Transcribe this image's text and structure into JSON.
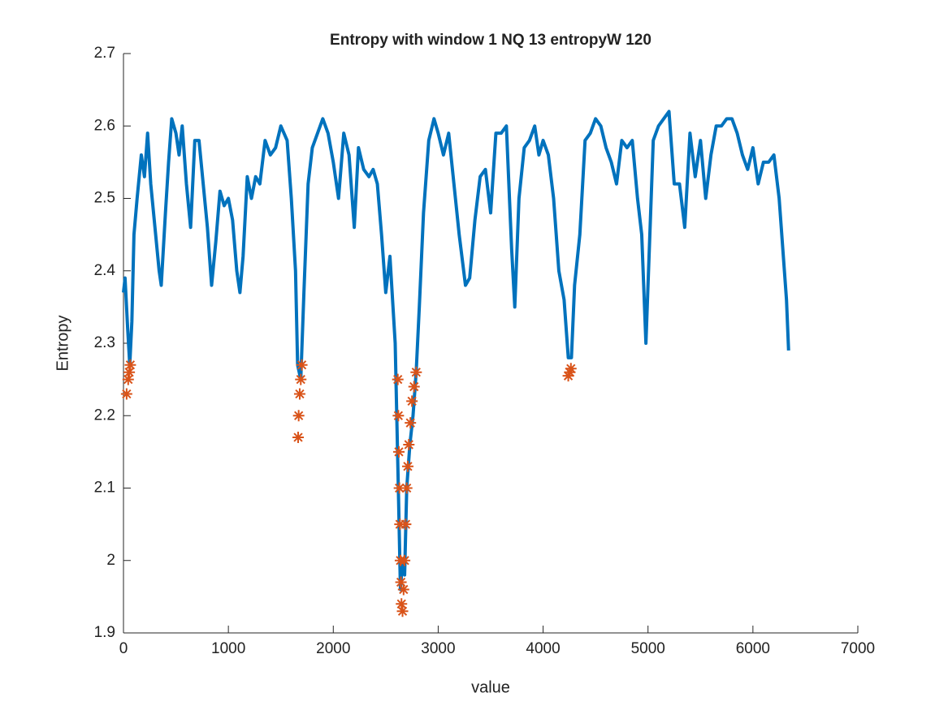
{
  "chart_data": {
    "type": "line",
    "title": "Entropy with window 1  NQ 13  entropyW 120",
    "xlabel": "value",
    "ylabel": "Entropy",
    "xlim": [
      0,
      7000
    ],
    "xticks": [
      0,
      1000,
      2000,
      3000,
      4000,
      5000,
      6000,
      7000
    ],
    "ylim": [
      1.9,
      2.7
    ],
    "yticks": [
      1.9,
      2,
      2.1,
      2.2,
      2.3,
      2.4,
      2.5,
      2.6,
      2.7
    ],
    "grid": false,
    "series": [
      {
        "color": "#0072bd",
        "line": true,
        "marker": "none",
        "x": [
          0,
          15,
          40,
          60,
          80,
          100,
          130,
          170,
          200,
          230,
          260,
          300,
          340,
          360,
          400,
          430,
          460,
          500,
          530,
          560,
          600,
          640,
          680,
          720,
          760,
          800,
          840,
          880,
          920,
          960,
          1000,
          1040,
          1080,
          1110,
          1140,
          1180,
          1220,
          1260,
          1300,
          1350,
          1400,
          1450,
          1500,
          1560,
          1600,
          1640,
          1660,
          1690,
          1720,
          1760,
          1800,
          1850,
          1900,
          1950,
          2000,
          2050,
          2100,
          2150,
          2200,
          2240,
          2290,
          2340,
          2380,
          2420,
          2460,
          2500,
          2540,
          2590,
          2620,
          2640,
          2660,
          2680,
          2700,
          2730,
          2760,
          2790,
          2820,
          2860,
          2910,
          2960,
          3000,
          3050,
          3100,
          3150,
          3200,
          3260,
          3300,
          3350,
          3400,
          3450,
          3500,
          3550,
          3600,
          3650,
          3700,
          3730,
          3770,
          3820,
          3870,
          3920,
          3960,
          4000,
          4050,
          4100,
          4150,
          4200,
          4240,
          4270,
          4300,
          4350,
          4400,
          4450,
          4500,
          4550,
          4600,
          4650,
          4700,
          4750,
          4800,
          4850,
          4900,
          4940,
          4980,
          5010,
          5050,
          5100,
          5150,
          5200,
          5250,
          5300,
          5350,
          5400,
          5450,
          5500,
          5550,
          5600,
          5650,
          5700,
          5750,
          5800,
          5850,
          5900,
          5950,
          6000,
          6050,
          6100,
          6150,
          6200,
          6250,
          6300,
          6320,
          6340
        ],
        "values": [
          2.37,
          2.39,
          2.32,
          2.27,
          2.33,
          2.45,
          2.5,
          2.56,
          2.53,
          2.59,
          2.52,
          2.46,
          2.4,
          2.38,
          2.48,
          2.55,
          2.61,
          2.59,
          2.56,
          2.6,
          2.52,
          2.46,
          2.58,
          2.58,
          2.52,
          2.46,
          2.38,
          2.44,
          2.51,
          2.49,
          2.5,
          2.47,
          2.4,
          2.37,
          2.42,
          2.53,
          2.5,
          2.53,
          2.52,
          2.58,
          2.56,
          2.57,
          2.6,
          2.58,
          2.5,
          2.4,
          2.27,
          2.25,
          2.37,
          2.52,
          2.57,
          2.59,
          2.61,
          2.59,
          2.55,
          2.5,
          2.59,
          2.56,
          2.46,
          2.57,
          2.54,
          2.53,
          2.54,
          2.52,
          2.45,
          2.37,
          2.42,
          2.3,
          2.1,
          1.96,
          2,
          1.98,
          2.1,
          2.16,
          2.2,
          2.26,
          2.35,
          2.48,
          2.58,
          2.61,
          2.59,
          2.56,
          2.59,
          2.52,
          2.45,
          2.38,
          2.39,
          2.47,
          2.53,
          2.54,
          2.48,
          2.59,
          2.59,
          2.6,
          2.43,
          2.35,
          2.5,
          2.57,
          2.58,
          2.6,
          2.56,
          2.58,
          2.56,
          2.5,
          2.4,
          2.36,
          2.28,
          2.28,
          2.38,
          2.45,
          2.58,
          2.59,
          2.61,
          2.6,
          2.57,
          2.55,
          2.52,
          2.58,
          2.57,
          2.58,
          2.5,
          2.45,
          2.3,
          2.42,
          2.58,
          2.6,
          2.61,
          2.62,
          2.52,
          2.52,
          2.46,
          2.59,
          2.53,
          2.58,
          2.5,
          2.56,
          2.6,
          2.6,
          2.61,
          2.61,
          2.59,
          2.56,
          2.54,
          2.57,
          2.52,
          2.55,
          2.55,
          2.56,
          2.5,
          2.4,
          2.36,
          2.29
        ]
      },
      {
        "color": "#d95319",
        "line": false,
        "marker": "star",
        "x": [
          30,
          45,
          55,
          65,
          1665,
          1670,
          1680,
          1690,
          1700,
          2615,
          2620,
          2625,
          2630,
          2635,
          2640,
          2645,
          2650,
          2660,
          2670,
          2680,
          2690,
          2700,
          2710,
          2720,
          2735,
          2750,
          2770,
          2790,
          4240,
          4255,
          4265
        ],
        "values": [
          2.23,
          2.25,
          2.26,
          2.27,
          2.17,
          2.2,
          2.23,
          2.25,
          2.27,
          2.25,
          2.2,
          2.15,
          2.1,
          2.05,
          2,
          1.97,
          1.94,
          1.93,
          1.96,
          2,
          2.05,
          2.1,
          2.13,
          2.16,
          2.19,
          2.22,
          2.24,
          2.26,
          2.255,
          2.26,
          2.265
        ]
      }
    ]
  }
}
